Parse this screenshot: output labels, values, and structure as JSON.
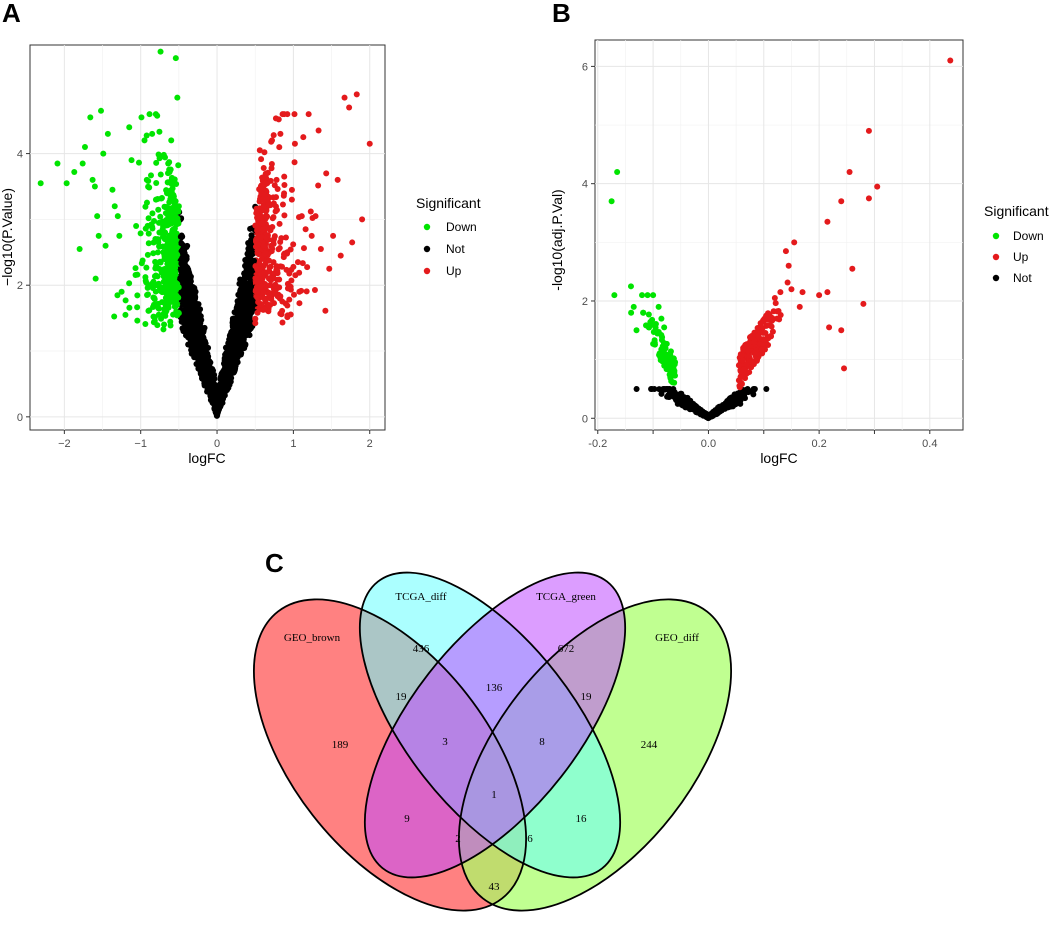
{
  "panels": {
    "a": "A",
    "b": "B",
    "c": "C"
  },
  "colors": {
    "down": "#00e400",
    "not": "#000000",
    "up": "#e41a1c",
    "venn": [
      "#ff6b6b",
      "#66ffff",
      "#c04dff",
      "#a8ff66"
    ]
  },
  "chart_data": [
    {
      "type": "scatter",
      "title": "",
      "xlabel": "logFC",
      "ylabel": "−log10(P.Value)",
      "xlim": [
        -2.45,
        2.2
      ],
      "ylim": [
        -0.2,
        5.65
      ],
      "xticks": [
        -2,
        -1,
        0,
        1,
        2
      ],
      "xtick_labels": [
        "−2",
        "−1",
        "0",
        "1",
        "2"
      ],
      "yticks": [
        0,
        2,
        4
      ],
      "ytick_labels": [
        "0",
        "2",
        "4"
      ],
      "legend": {
        "title": "Significant",
        "position": "right",
        "entries": [
          {
            "label": "Down",
            "color": "#00e400"
          },
          {
            "label": "Not",
            "color": "#000000"
          },
          {
            "label": "Up",
            "color": "#e41a1c"
          }
        ]
      },
      "points_highlight": {
        "down": [
          [
            -2.31,
            3.55
          ],
          [
            -2.09,
            3.85
          ],
          [
            -1.97,
            3.55
          ],
          [
            -1.87,
            3.72
          ],
          [
            -1.8,
            2.55
          ],
          [
            -1.76,
            3.85
          ],
          [
            -1.73,
            4.1
          ],
          [
            -1.66,
            4.55
          ],
          [
            -1.63,
            3.6
          ],
          [
            -1.6,
            3.5
          ],
          [
            -1.59,
            2.1
          ],
          [
            -1.57,
            3.05
          ],
          [
            -1.55,
            2.75
          ],
          [
            -1.52,
            4.65
          ],
          [
            -1.49,
            4.0
          ],
          [
            -1.46,
            2.6
          ],
          [
            -1.43,
            4.3
          ],
          [
            -1.37,
            3.45
          ],
          [
            -1.34,
            3.2
          ],
          [
            -1.3,
            3.05
          ],
          [
            -1.28,
            2.75
          ],
          [
            -1.25,
            1.9
          ],
          [
            -1.2,
            1.55
          ],
          [
            -1.15,
            4.4
          ],
          [
            -1.12,
            3.9
          ],
          [
            -1.06,
            2.9
          ],
          [
            -0.99,
            4.55
          ],
          [
            -0.95,
            4.2
          ],
          [
            -0.92,
            3.6
          ],
          [
            -0.9,
            2.0
          ],
          [
            -0.85,
            4.3
          ],
          [
            -0.8,
            3.3
          ],
          [
            -0.74,
            5.55
          ],
          [
            -0.68,
            2.45
          ],
          [
            -0.64,
            3.85
          ],
          [
            -0.6,
            4.2
          ],
          [
            -0.57,
            3.35
          ],
          [
            -0.54,
            5.45
          ],
          [
            -0.52,
            4.85
          ],
          [
            -0.5,
            3.2
          ]
        ],
        "up": [
          [
            0.56,
            4.05
          ],
          [
            0.6,
            3.3
          ],
          [
            0.64,
            3.55
          ],
          [
            0.68,
            2.1
          ],
          [
            0.72,
            4.2
          ],
          [
            0.74,
            2.35
          ],
          [
            0.78,
            3.6
          ],
          [
            0.83,
            4.3
          ],
          [
            0.88,
            3.65
          ],
          [
            0.92,
            2.5
          ],
          [
            0.98,
            3.3
          ],
          [
            1.02,
            4.15
          ],
          [
            1.06,
            2.35
          ],
          [
            1.11,
            3.05
          ],
          [
            1.13,
            4.25
          ],
          [
            1.16,
            2.85
          ],
          [
            1.2,
            4.6
          ],
          [
            1.24,
            2.75
          ],
          [
            1.29,
            3.05
          ],
          [
            1.33,
            4.35
          ],
          [
            1.36,
            2.55
          ],
          [
            1.43,
            3.7
          ],
          [
            1.47,
            2.25
          ],
          [
            1.52,
            2.75
          ],
          [
            1.58,
            3.6
          ],
          [
            1.62,
            2.45
          ],
          [
            1.67,
            4.85
          ],
          [
            1.73,
            4.7
          ],
          [
            1.77,
            2.65
          ],
          [
            1.83,
            4.9
          ],
          [
            1.9,
            3.0
          ],
          [
            2.0,
            4.15
          ]
        ]
      },
      "cloud": {
        "x_range": [
          -1.6,
          1.6
        ],
        "y_range": [
          0,
          4.7
        ],
        "threshold_y": 1.3,
        "threshold_logfc": 0.5
      }
    },
    {
      "type": "scatter",
      "title": "",
      "xlabel": "logFC",
      "ylabel": "-log10(adj.P.Val)",
      "xlim": [
        -0.205,
        0.46
      ],
      "ylim": [
        -0.2,
        6.45
      ],
      "xticks": [
        -0.2,
        -0.1,
        0.0,
        0.1,
        0.2,
        0.3,
        0.4
      ],
      "xtick_labels": [
        "-0.2",
        "",
        "0.0",
        "",
        "0.2",
        "",
        "0.4"
      ],
      "yticks": [
        0,
        2,
        4,
        6
      ],
      "ytick_labels": [
        "0",
        "2",
        "4",
        "6"
      ],
      "legend": {
        "title": "Significant",
        "position": "right",
        "entries": [
          {
            "label": "Down",
            "color": "#00e400"
          },
          {
            "label": "Up",
            "color": "#e41a1c"
          },
          {
            "label": "Not",
            "color": "#000000"
          }
        ]
      },
      "points_highlight": {
        "down": [
          [
            -0.175,
            3.7
          ],
          [
            -0.165,
            4.2
          ],
          [
            -0.17,
            2.1
          ],
          [
            -0.14,
            2.25
          ],
          [
            -0.135,
            1.9
          ],
          [
            -0.13,
            1.5
          ],
          [
            -0.12,
            2.1
          ],
          [
            -0.11,
            2.1
          ],
          [
            -0.1,
            2.1
          ],
          [
            -0.09,
            1.9
          ],
          [
            -0.085,
            1.7
          ],
          [
            -0.08,
            1.55
          ]
        ],
        "up": [
          [
            0.437,
            6.1
          ],
          [
            0.29,
            4.9
          ],
          [
            0.305,
            3.95
          ],
          [
            0.255,
            4.2
          ],
          [
            0.24,
            3.7
          ],
          [
            0.29,
            3.75
          ],
          [
            0.215,
            3.35
          ],
          [
            0.26,
            2.55
          ],
          [
            0.2,
            2.1
          ],
          [
            0.215,
            2.15
          ],
          [
            0.28,
            1.95
          ],
          [
            0.218,
            1.55
          ],
          [
            0.24,
            1.5
          ],
          [
            0.245,
            0.85
          ],
          [
            0.155,
            3.0
          ],
          [
            0.14,
            2.85
          ],
          [
            0.145,
            2.6
          ],
          [
            0.13,
            2.15
          ],
          [
            0.12,
            2.05
          ],
          [
            0.17,
            2.15
          ],
          [
            0.165,
            1.9
          ],
          [
            0.15,
            2.2
          ]
        ]
      }
    },
    {
      "type": "venn",
      "sets": [
        "GEO_brown",
        "TCGA_diff",
        "TCGA_green",
        "GEO_diff"
      ],
      "regions": [
        {
          "sets": [
            "GEO_brown"
          ],
          "count": 189
        },
        {
          "sets": [
            "TCGA_diff"
          ],
          "count": 436
        },
        {
          "sets": [
            "TCGA_green"
          ],
          "count": 672
        },
        {
          "sets": [
            "GEO_diff"
          ],
          "count": 244
        },
        {
          "sets": [
            "GEO_brown",
            "TCGA_diff"
          ],
          "count": 19
        },
        {
          "sets": [
            "TCGA_diff",
            "TCGA_green"
          ],
          "count": 136
        },
        {
          "sets": [
            "TCGA_green",
            "GEO_diff"
          ],
          "count": 19
        },
        {
          "sets": [
            "GEO_brown",
            "TCGA_diff",
            "TCGA_green"
          ],
          "count": 3
        },
        {
          "sets": [
            "TCGA_diff",
            "TCGA_green",
            "GEO_diff"
          ],
          "count": 8
        },
        {
          "sets": [
            "GEO_brown",
            "TCGA_diff",
            "TCGA_green",
            "GEO_diff"
          ],
          "count": 1
        },
        {
          "sets": [
            "GEO_brown",
            "TCGA_green"
          ],
          "count": 9
        },
        {
          "sets": [
            "TCGA_diff",
            "GEO_diff"
          ],
          "count": 16
        },
        {
          "sets": [
            "GEO_brown",
            "TCGA_green",
            "GEO_diff"
          ],
          "count": 2
        },
        {
          "sets": [
            "GEO_brown",
            "TCGA_diff",
            "GEO_diff"
          ],
          "count": 6
        },
        {
          "sets": [
            "GEO_brown",
            "GEO_diff"
          ],
          "count": 43
        }
      ]
    }
  ]
}
